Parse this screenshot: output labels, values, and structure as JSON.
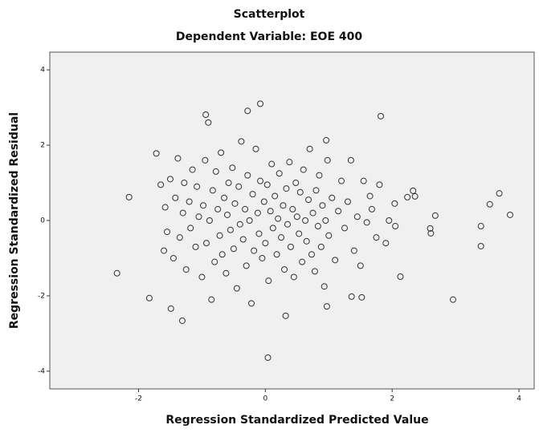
{
  "chart_data": {
    "type": "scatter",
    "title": "Scatterplot",
    "subtitle": "Dependent Variable: EOE 400",
    "x_label": "Regression Standardized Predicted Value",
    "y_label": "Regression Standardized Residual",
    "xlim": [
      -3.4,
      4.24
    ],
    "ylim": [
      -4.47,
      4.47
    ],
    "xticks": [
      -2,
      0,
      2,
      4
    ],
    "yticks": [
      -4,
      -2,
      0,
      2,
      4
    ],
    "x": [
      -2.34,
      -2.15,
      -1.83,
      -1.49,
      0.04,
      -1.31,
      -0.08,
      -0.28,
      1.82,
      -0.94,
      2.96,
      3.4,
      3.4,
      3.54,
      3.69,
      3.86,
      2.68,
      2.6,
      2.61,
      2.13,
      1.52,
      1.36,
      0.32,
      0.97,
      0.96,
      2.33,
      2.24,
      2.36,
      2.04,
      1.68,
      -1.72,
      -1.65,
      -1.6,
      -1.58,
      -1.55,
      -1.5,
      -1.45,
      -1.42,
      -1.38,
      -1.35,
      -1.3,
      -1.28,
      -1.25,
      -1.2,
      -1.18,
      -1.15,
      -1.1,
      -1.08,
      -1.05,
      -1.0,
      -0.98,
      -0.95,
      -0.93,
      -0.9,
      -0.88,
      -0.85,
      -0.83,
      -0.8,
      -0.78,
      -0.75,
      -0.72,
      -0.7,
      -0.68,
      -0.65,
      -0.62,
      -0.6,
      -0.58,
      -0.55,
      -0.52,
      -0.5,
      -0.48,
      -0.45,
      -0.42,
      -0.4,
      -0.38,
      -0.35,
      -0.32,
      -0.3,
      -0.28,
      -0.25,
      -0.22,
      -0.2,
      -0.18,
      -0.15,
      -0.12,
      -0.1,
      -0.08,
      -0.05,
      -0.02,
      0.0,
      0.03,
      0.05,
      0.08,
      0.1,
      0.12,
      0.15,
      0.18,
      0.2,
      0.22,
      0.25,
      0.28,
      0.3,
      0.33,
      0.35,
      0.38,
      0.4,
      0.43,
      0.45,
      0.48,
      0.5,
      0.53,
      0.55,
      0.58,
      0.6,
      0.63,
      0.65,
      0.68,
      0.7,
      0.73,
      0.75,
      0.78,
      0.8,
      0.83,
      0.85,
      0.88,
      0.9,
      0.93,
      0.95,
      0.98,
      1.0,
      1.05,
      1.1,
      1.15,
      1.2,
      1.25,
      1.3,
      1.35,
      1.4,
      1.45,
      1.5,
      1.55,
      1.6,
      1.65,
      1.75,
      1.8,
      1.9,
      1.95,
      2.05
    ],
    "values": [
      -1.4,
      0.62,
      -2.06,
      -2.34,
      -3.64,
      -2.66,
      3.1,
      2.91,
      2.77,
      2.81,
      -2.1,
      -0.15,
      -0.68,
      0.43,
      0.72,
      0.15,
      0.13,
      -0.21,
      -0.34,
      -1.49,
      -2.04,
      -2.02,
      -2.53,
      -2.28,
      2.13,
      0.79,
      0.62,
      0.64,
      0.45,
      0.3,
      1.78,
      0.95,
      -0.8,
      0.35,
      -0.3,
      1.1,
      -1.0,
      0.6,
      1.65,
      -0.45,
      0.2,
      1.0,
      -1.3,
      0.5,
      -0.2,
      1.35,
      -0.7,
      0.9,
      0.1,
      -1.5,
      0.4,
      1.6,
      -0.6,
      2.6,
      0.0,
      -2.1,
      0.8,
      -1.1,
      1.3,
      0.3,
      -0.4,
      1.8,
      -0.9,
      0.6,
      -1.4,
      0.15,
      1.0,
      -0.25,
      1.4,
      -0.75,
      0.45,
      -1.8,
      0.9,
      -0.1,
      2.1,
      -0.5,
      0.3,
      -1.2,
      1.2,
      0.0,
      -2.2,
      0.7,
      -0.8,
      1.9,
      0.2,
      -0.35,
      1.05,
      -1.0,
      0.5,
      -0.6,
      0.95,
      -1.6,
      0.25,
      1.5,
      -0.2,
      0.65,
      -0.9,
      0.05,
      1.25,
      -0.45,
      0.4,
      -1.3,
      0.85,
      -0.1,
      1.55,
      -0.7,
      0.3,
      -1.5,
      1.0,
      0.1,
      -0.35,
      0.75,
      -1.1,
      1.35,
      0.0,
      -0.55,
      0.55,
      1.9,
      -0.9,
      0.2,
      -1.35,
      0.8,
      -0.15,
      1.2,
      -0.7,
      0.4,
      -1.75,
      0.0,
      1.6,
      -0.4,
      0.6,
      -1.05,
      0.25,
      1.05,
      -0.2,
      0.5,
      1.6,
      -0.8,
      0.1,
      -1.2,
      1.05,
      -0.05,
      0.65,
      -0.45,
      0.95,
      -0.6,
      0.0,
      -0.15
    ],
    "color": "#333333",
    "background": "#f0f0f0"
  }
}
